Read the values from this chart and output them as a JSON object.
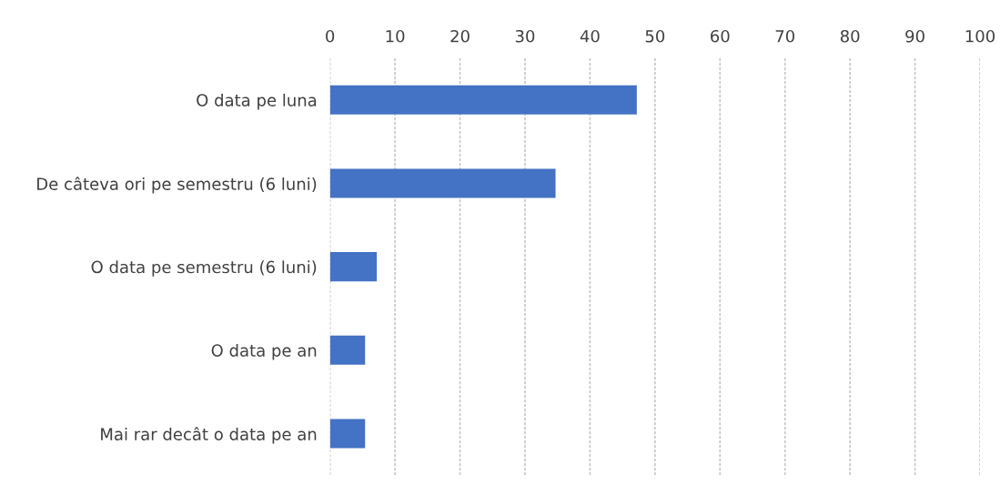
{
  "chart_data": {
    "type": "bar",
    "orientation": "horizontal",
    "categories": [
      "O data pe luna",
      "De câteva ori pe semestru (6 luni)",
      "O data pe semestru (6 luni)",
      "O data pe an",
      "Mai rar decât o data pe an"
    ],
    "values": [
      47.2,
      34.7,
      7.2,
      5.4,
      5.4
    ],
    "color": "#4472c4",
    "xlim": [
      0,
      100
    ],
    "xticks": [
      0,
      10,
      20,
      30,
      40,
      50,
      60,
      70,
      80,
      90,
      100
    ],
    "grid": "x",
    "legend": false
  }
}
